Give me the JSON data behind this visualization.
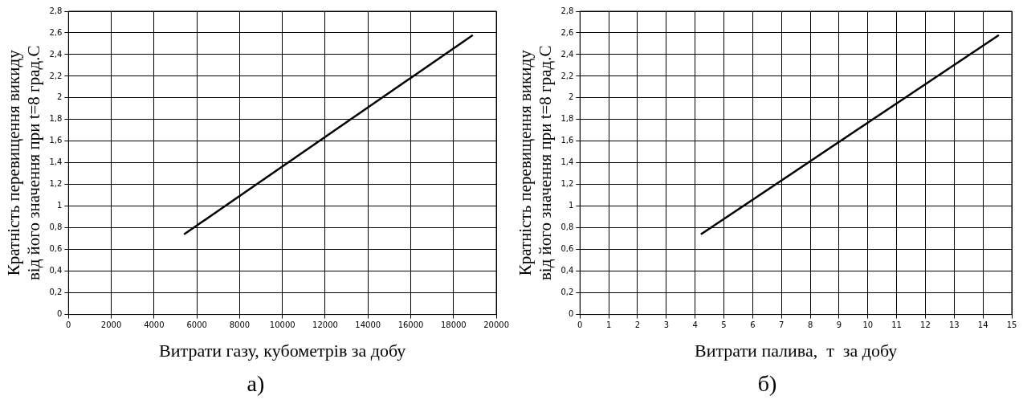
{
  "chart_data": [
    {
      "type": "line",
      "xlabel": "Витрати газу, кубометрів за добу",
      "ylabel": "Кратність перевищення викиду\nвід його значення при t=8 град.С",
      "annotations": [
        "а)"
      ],
      "series": [
        {
          "color": "#000000",
          "x": [
            5400,
            18900
          ],
          "values": [
            0.74,
            2.58
          ]
        }
      ],
      "xlim": [
        0,
        20000
      ],
      "xticks": [
        0,
        2000,
        4000,
        6000,
        8000,
        10000,
        12000,
        14000,
        16000,
        18000,
        20000
      ],
      "ylim": [
        0,
        2.8
      ],
      "yticks": [
        0,
        {
          "value": 0.2,
          "label": "0,2"
        },
        {
          "value": 0.4,
          "label": "0,4"
        },
        {
          "value": 0.6,
          "label": "0,6"
        },
        {
          "value": 0.8,
          "label": "0,8"
        },
        1,
        {
          "value": 1.2,
          "label": "1,2"
        },
        {
          "value": 1.4,
          "label": "1,4"
        },
        {
          "value": 1.6,
          "label": "1,6"
        },
        {
          "value": 1.8,
          "label": "1,8"
        },
        2,
        {
          "value": 2.2,
          "label": "2,2"
        },
        {
          "value": 2.4,
          "label": "2,4"
        },
        {
          "value": 2.6,
          "label": "2,6"
        },
        {
          "value": 2.8,
          "label": "2,8"
        }
      ],
      "grid": true,
      "legend": false,
      "marker": "none",
      "line_style": "solid"
    },
    {
      "type": "line",
      "xlabel": "Витрати палива,  т  за добу",
      "ylabel": "Кратність перевищення викиду\nвід його значення при t=8 град.С",
      "annotations": [
        "б)"
      ],
      "series": [
        {
          "color": "#000000",
          "x": [
            4.2,
            14.55
          ],
          "values": [
            0.74,
            2.58
          ]
        }
      ],
      "xlim": [
        0,
        15
      ],
      "xticks": [
        0,
        1,
        2,
        3,
        4,
        5,
        6,
        7,
        8,
        9,
        10,
        11,
        12,
        13,
        14,
        15
      ],
      "ylim": [
        0,
        2.8
      ],
      "yticks": [
        0,
        {
          "value": 0.2,
          "label": "0,2"
        },
        {
          "value": 0.4,
          "label": "0,4"
        },
        {
          "value": 0.6,
          "label": "0,6"
        },
        {
          "value": 0.8,
          "label": "0,8"
        },
        1,
        {
          "value": 1.2,
          "label": "1,2"
        },
        {
          "value": 1.4,
          "label": "1,4"
        },
        {
          "value": 1.6,
          "label": "1,6"
        },
        {
          "value": 1.8,
          "label": "1,8"
        },
        2,
        {
          "value": 2.2,
          "label": "2,2"
        },
        {
          "value": 2.4,
          "label": "2,4"
        },
        {
          "value": 2.6,
          "label": "2,6"
        },
        {
          "value": 2.8,
          "label": "2,8"
        }
      ],
      "grid": true,
      "legend": false,
      "marker": "none",
      "line_style": "solid"
    }
  ]
}
